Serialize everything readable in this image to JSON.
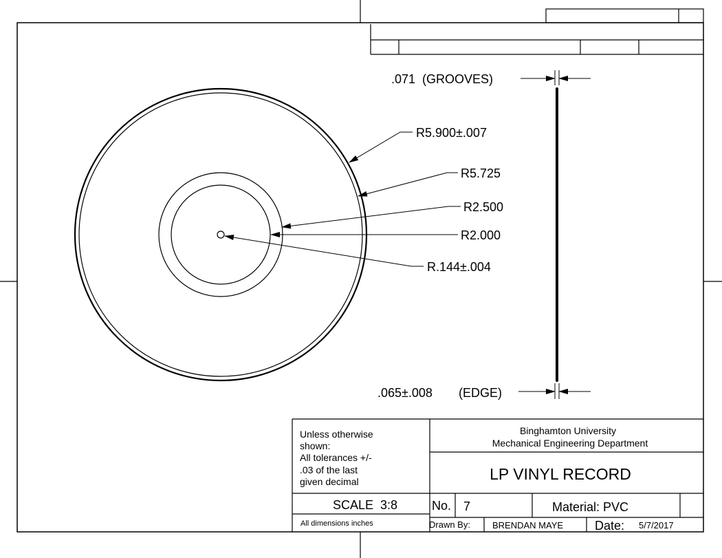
{
  "dimensions": {
    "grooves": ".071  (GROOVES)",
    "outer_radius": "R5.900±.007",
    "groove_radius": "R5.725",
    "label_radius": "R2.500",
    "label_inner_radius": "R2.000",
    "hole_radius": "R.144±.004",
    "edge_value": ".065±.008",
    "edge_label": "(EDGE)"
  },
  "notes": {
    "line1": "Unless otherwise",
    "line2": "shown:",
    "line3": "All tolerances +/-",
    "line4": ".03 of the last",
    "line5": "given decimal",
    "units": "All dimensions inches"
  },
  "title_block": {
    "institution": "Binghamton University",
    "department": "Mechanical Engineering Department",
    "title": "LP VINYL RECORD",
    "scale": "SCALE  3:8",
    "number_label": "No.",
    "number": "7",
    "material": "Material: PVC",
    "drawn_by_label": "Drawn By:",
    "drawn_by": "BRENDAN MAYE",
    "date_label": "Date:",
    "date": "5/7/2017"
  }
}
